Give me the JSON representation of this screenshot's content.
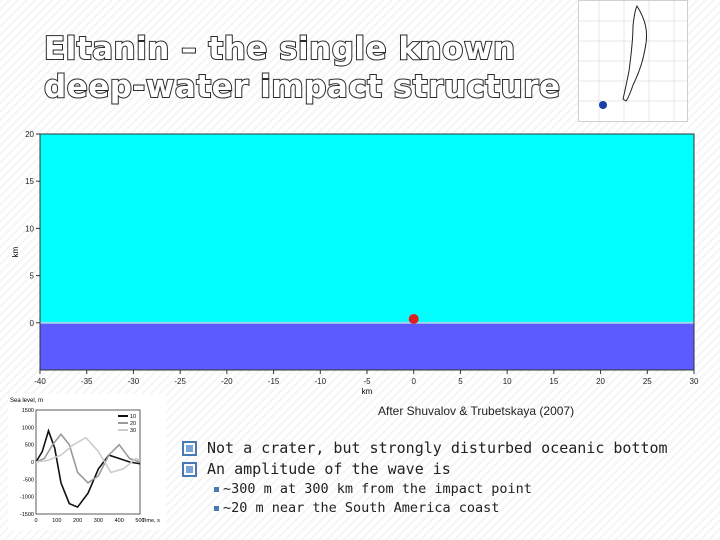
{
  "slide": {
    "title": "Eltanin – the single known deep-water impact structure",
    "caption": "After Shuvalov & Trubetskaya (2007)",
    "bullets": [
      "Not a crater, but strongly disturbed oceanic bottom",
      "An amplitude of the wave is"
    ],
    "sub_bullets": [
      "~300 m at 300 km from the impact point",
      "~20 m near the South America coast"
    ]
  },
  "chart_data": [
    {
      "type": "area",
      "xlabel": "km",
      "ylabel": "km",
      "xlim": [
        -40,
        30
      ],
      "ylim": [
        -5,
        20
      ],
      "x_ticks": [
        "-40",
        "-35",
        "-30",
        "-25",
        "-20",
        "-15",
        "-10",
        "-5",
        "0",
        "5",
        "10",
        "15",
        "20",
        "25",
        "30"
      ],
      "y_ticks": [
        "0",
        "5",
        "10",
        "15",
        "20"
      ],
      "layers": [
        {
          "from": -5,
          "to": 0,
          "color": "#5b5bff"
        },
        {
          "from": 0,
          "to": 20,
          "color": "#00ffff"
        }
      ],
      "impact_point": {
        "x": 0,
        "y": 0.4,
        "color": "#e02020"
      }
    },
    {
      "type": "line",
      "ylabel": "Sea level, m",
      "xlabel": "Time, s",
      "xlim": [
        0,
        500
      ],
      "ylim": [
        -1500,
        1500
      ],
      "x_ticks": [
        "0",
        "100",
        "200",
        "300",
        "400",
        "500"
      ],
      "y_ticks": [
        "1500",
        "1000",
        "500",
        "0",
        "-500",
        "-1000",
        "-1500"
      ],
      "legend": [
        "10",
        "20",
        "30"
      ],
      "series": [
        {
          "name": "10",
          "color": "#111111",
          "x": [
            0,
            30,
            60,
            90,
            120,
            160,
            200,
            250,
            300,
            350,
            400,
            450,
            500
          ],
          "y": [
            0,
            300,
            900,
            400,
            -600,
            -1200,
            -1300,
            -900,
            -200,
            200,
            100,
            0,
            -50
          ]
        },
        {
          "name": "20",
          "color": "#9a9a9a",
          "x": [
            0,
            40,
            80,
            120,
            160,
            200,
            250,
            300,
            350,
            400,
            450,
            500
          ],
          "y": [
            0,
            100,
            500,
            800,
            500,
            -300,
            -600,
            -400,
            200,
            500,
            100,
            0
          ]
        },
        {
          "name": "30",
          "color": "#cccccc",
          "x": [
            0,
            60,
            120,
            180,
            240,
            300,
            360,
            420,
            480,
            500
          ],
          "y": [
            0,
            50,
            200,
            500,
            700,
            300,
            -300,
            -200,
            100,
            50
          ]
        }
      ]
    }
  ],
  "colors": {
    "accent": "#4a78b5",
    "title_outline": "#2b2b2b"
  }
}
